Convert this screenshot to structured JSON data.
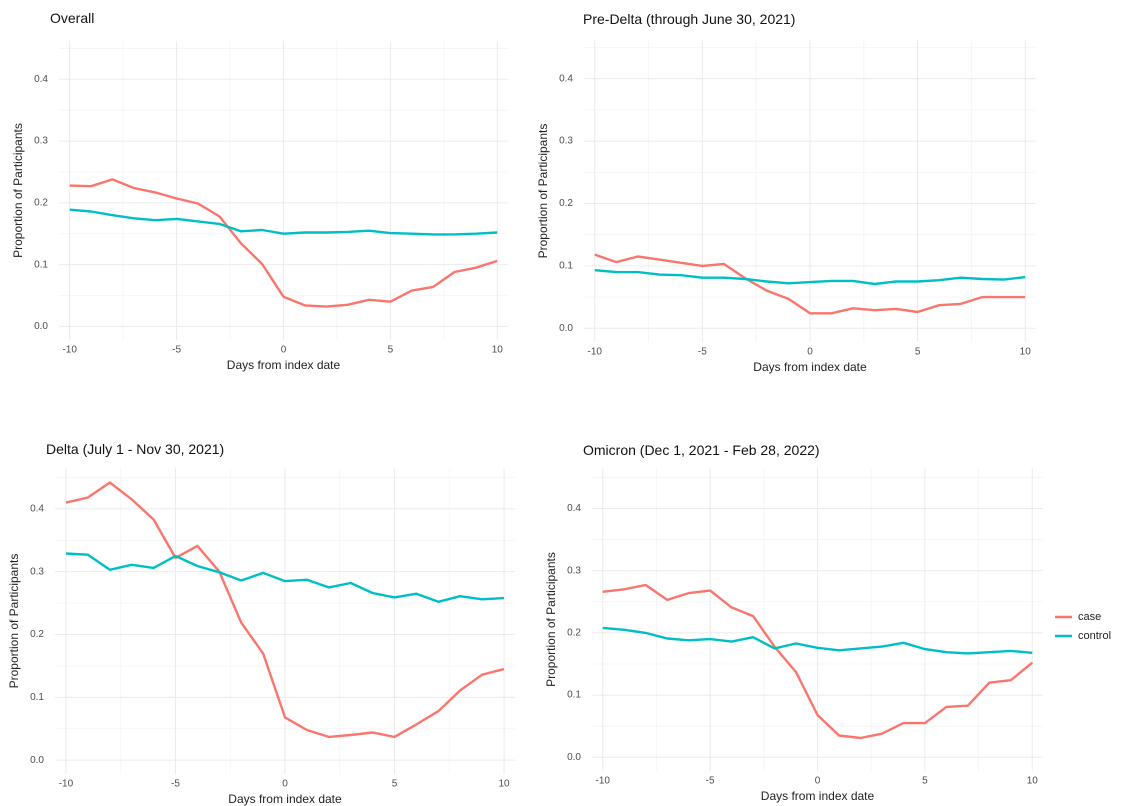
{
  "chart_data": [
    {
      "type": "line",
      "title": "Overall",
      "xlabel": "Days from index date",
      "ylabel": "Proportion of Participants",
      "x": [
        -10,
        -9,
        -8,
        -7,
        -6,
        -5,
        -4,
        -3,
        -2,
        -1,
        0,
        1,
        2,
        3,
        4,
        5,
        6,
        7,
        8,
        9,
        10
      ],
      "series": [
        {
          "name": "case",
          "color": "#f8766d",
          "values": [
            0.228,
            0.227,
            0.238,
            0.224,
            0.217,
            0.207,
            0.199,
            0.178,
            0.135,
            0.101,
            0.048,
            0.034,
            0.032,
            0.035,
            0.043,
            0.04,
            0.058,
            0.064,
            0.088,
            0.095,
            0.106
          ]
        },
        {
          "name": "control",
          "color": "#00bfc4",
          "values": [
            0.189,
            0.186,
            0.18,
            0.175,
            0.172,
            0.174,
            0.17,
            0.166,
            0.154,
            0.156,
            0.15,
            0.152,
            0.152,
            0.153,
            0.155,
            0.151,
            0.15,
            0.149,
            0.149,
            0.15,
            0.152
          ]
        }
      ],
      "xlim": [
        -10.5,
        10.5
      ],
      "xticks": [
        -10,
        -5,
        0,
        5,
        10
      ],
      "ylim": [
        -0.022,
        0.462
      ],
      "yticks": [
        {
          "value": 0,
          "label": "0.0"
        },
        0.1,
        0.2,
        0.3,
        0.4
      ],
      "grid": true
    },
    {
      "type": "line",
      "title": "Pre-Delta (through June 30, 2021)",
      "xlabel": "Days from index date",
      "ylabel": "Proportion of Participants",
      "x": [
        -10,
        -9,
        -8,
        -7,
        -6,
        -5,
        -4,
        -3,
        -2,
        -1,
        0,
        1,
        2,
        3,
        4,
        5,
        6,
        7,
        8,
        9,
        10
      ],
      "series": [
        {
          "name": "case",
          "color": "#f8766d",
          "values": [
            0.118,
            0.106,
            0.115,
            0.11,
            0.105,
            0.1,
            0.103,
            0.08,
            0.06,
            0.047,
            0.024,
            0.024,
            0.032,
            0.029,
            0.031,
            0.026,
            0.037,
            0.039,
            0.05,
            0.05,
            0.05
          ]
        },
        {
          "name": "control",
          "color": "#00bfc4",
          "values": [
            0.093,
            0.09,
            0.09,
            0.086,
            0.085,
            0.081,
            0.081,
            0.079,
            0.075,
            0.072,
            0.074,
            0.076,
            0.076,
            0.071,
            0.075,
            0.075,
            0.077,
            0.081,
            0.079,
            0.078,
            0.082
          ]
        }
      ],
      "xlim": [
        -10.5,
        10.5
      ],
      "xticks": [
        -10,
        -5,
        0,
        5,
        10
      ],
      "ylim": [
        -0.022,
        0.462
      ],
      "yticks": [
        {
          "value": 0,
          "label": "0.0"
        },
        0.1,
        0.2,
        0.3,
        0.4
      ],
      "grid": true
    },
    {
      "type": "line",
      "title": "Delta (July 1 - Nov 30, 2021)",
      "xlabel": "Days from index date",
      "ylabel": "Proportion of Participants",
      "x": [
        -10,
        -9,
        -8,
        -7,
        -6,
        -5,
        -4,
        -3,
        -2,
        -1,
        0,
        1,
        2,
        3,
        4,
        5,
        6,
        7,
        8,
        9,
        10
      ],
      "series": [
        {
          "name": "case",
          "color": "#f8766d",
          "values": [
            0.41,
            0.418,
            0.442,
            0.415,
            0.383,
            0.322,
            0.341,
            0.3,
            0.219,
            0.17,
            0.068,
            0.048,
            0.037,
            0.04,
            0.044,
            0.037,
            0.057,
            0.078,
            0.111,
            0.136,
            0.145
          ]
        },
        {
          "name": "control",
          "color": "#00bfc4",
          "values": [
            0.329,
            0.327,
            0.303,
            0.311,
            0.306,
            0.325,
            0.309,
            0.299,
            0.286,
            0.298,
            0.285,
            0.287,
            0.275,
            0.282,
            0.266,
            0.259,
            0.265,
            0.252,
            0.261,
            0.256,
            0.258
          ]
        }
      ],
      "xlim": [
        -10.5,
        10.5
      ],
      "xticks": [
        -10,
        -5,
        0,
        5,
        10
      ],
      "ylim": [
        -0.022,
        0.465
      ],
      "yticks": [
        {
          "value": 0,
          "label": "0.0"
        },
        0.1,
        0.2,
        0.3,
        0.4
      ],
      "grid": true
    },
    {
      "type": "line",
      "title": "Omicron (Dec 1, 2021 - Feb 28, 2022)",
      "xlabel": "Days from index date",
      "ylabel": "Proportion of Participants",
      "x": [
        -10,
        -9,
        -8,
        -7,
        -6,
        -5,
        -4,
        -3,
        -2,
        -1,
        0,
        1,
        2,
        3,
        4,
        5,
        6,
        7,
        8,
        9,
        10
      ],
      "series": [
        {
          "name": "case",
          "color": "#f8766d",
          "values": [
            0.266,
            0.27,
            0.277,
            0.253,
            0.264,
            0.268,
            0.241,
            0.227,
            0.178,
            0.137,
            0.068,
            0.035,
            0.031,
            0.038,
            0.055,
            0.055,
            0.081,
            0.083,
            0.12,
            0.124,
            0.152
          ]
        },
        {
          "name": "control",
          "color": "#00bfc4",
          "values": [
            0.208,
            0.205,
            0.2,
            0.191,
            0.188,
            0.19,
            0.186,
            0.193,
            0.175,
            0.183,
            0.176,
            0.172,
            0.175,
            0.178,
            0.184,
            0.174,
            0.169,
            0.167,
            0.169,
            0.171,
            0.168
          ]
        }
      ],
      "xlim": [
        -10.5,
        10.5
      ],
      "xticks": [
        -10,
        -5,
        0,
        5,
        10
      ],
      "ylim": [
        -0.022,
        0.465
      ],
      "yticks": [
        {
          "value": 0,
          "label": "0.0"
        },
        0.1,
        0.2,
        0.3,
        0.4
      ],
      "grid": true
    }
  ]
}
